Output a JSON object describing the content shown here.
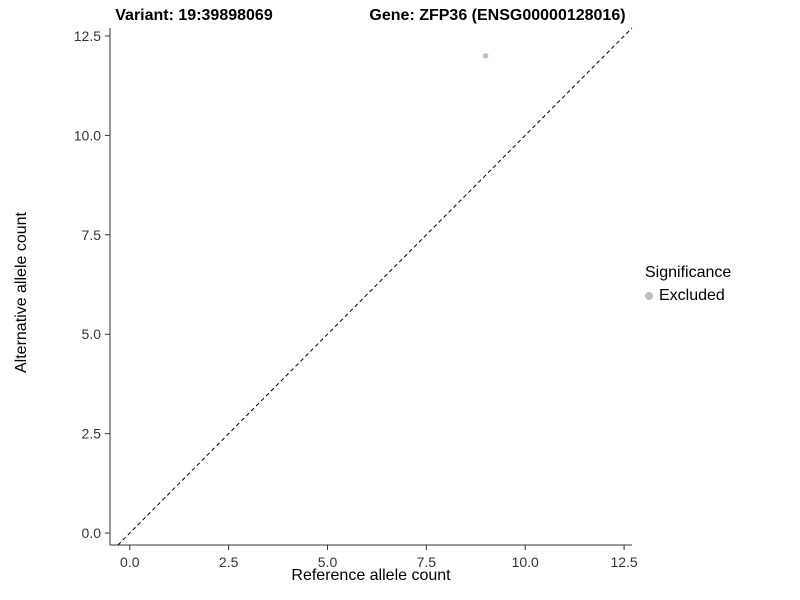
{
  "chart_data": {
    "type": "scatter",
    "title_left": "Variant: 19:39898069",
    "title_right": "Gene: ZFP36 (ENSG00000128016)",
    "xlabel": "Reference allele count",
    "ylabel": "Alternative allele count",
    "xlim": [
      -0.5,
      12.7
    ],
    "ylim": [
      -0.3,
      12.7
    ],
    "xticks": [
      0,
      2.5,
      5,
      7.5,
      10,
      12.5
    ],
    "yticks": [
      0,
      2.5,
      5,
      7.5,
      10,
      12.5
    ],
    "xtick_labels": [
      "0.0",
      "2.5",
      "5.0",
      "7.5",
      "10.0",
      "12.5"
    ],
    "ytick_labels": [
      "0.0",
      "2.5",
      "5.0",
      "7.5",
      "10.0",
      "12.5"
    ],
    "grid": false,
    "identity_line": {
      "style": "dashed",
      "slope": 1,
      "intercept": 0,
      "color": "#000000"
    },
    "series": [
      {
        "name": "Excluded",
        "color": "#bebebe",
        "points": [
          {
            "x": 9,
            "y": 12
          }
        ]
      }
    ],
    "legend": {
      "title": "Significance",
      "position": "right",
      "entries": [
        {
          "label": "Excluded",
          "color": "#bebebe"
        }
      ]
    }
  },
  "colors": {
    "axis_line": "#333333",
    "tick_label": "#333333",
    "background": "#ffffff"
  }
}
